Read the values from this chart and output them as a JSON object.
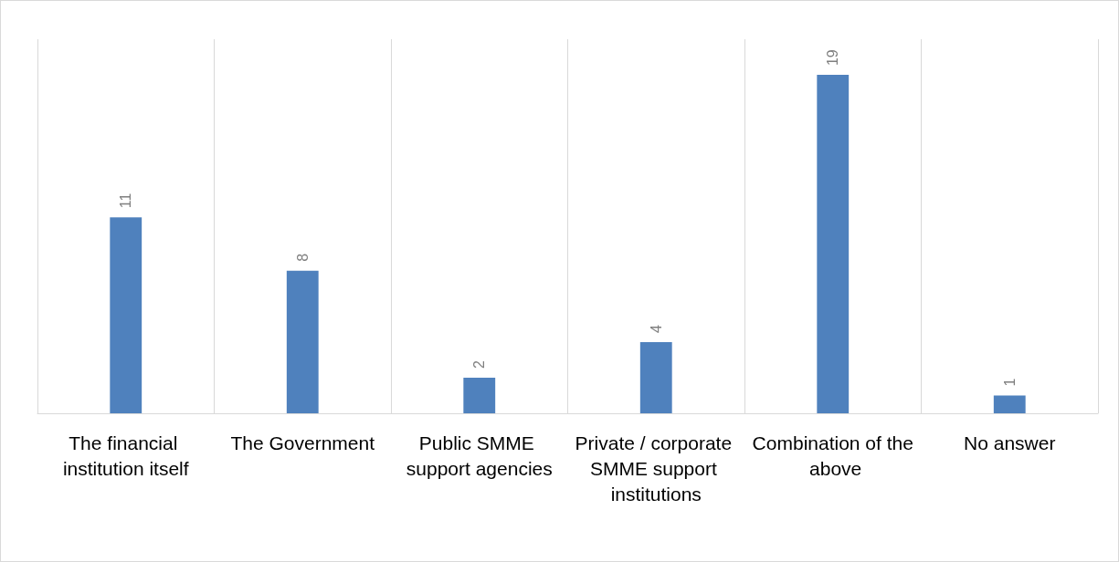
{
  "chart_data": {
    "type": "bar",
    "categories": [
      "The financial institution itself",
      "The Government",
      "Public SMME support agencies",
      "Private / corporate SMME support institutions",
      "Combination of the above",
      "No answer"
    ],
    "values": [
      11,
      8,
      2,
      4,
      19,
      1
    ],
    "color": "#4f81bd",
    "data_labels": true,
    "grid": "x"
  }
}
